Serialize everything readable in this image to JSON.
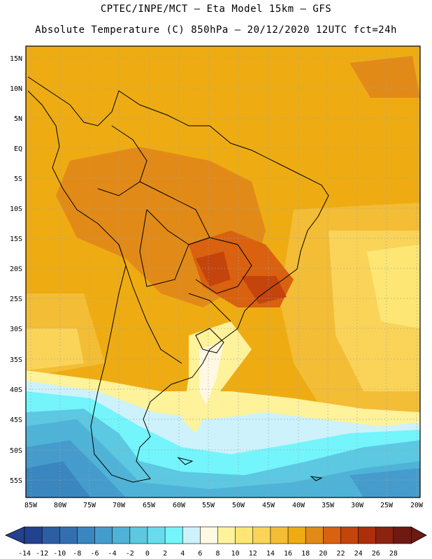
{
  "header": {
    "line1": "CPTEC/INPE/MCT –  Eta Model 15km – GFS",
    "line2": "Absolute Temperature (C) 850hPa – 20/12/2020 12UTC fct=24h"
  },
  "axes": {
    "lat_labels": [
      "15N",
      "10N",
      "5N",
      "EQ",
      "5S",
      "10S",
      "15S",
      "20S",
      "25S",
      "30S",
      "35S",
      "40S",
      "45S",
      "50S",
      "55S"
    ],
    "lat_values": [
      15,
      10,
      5,
      0,
      -5,
      -10,
      -15,
      -20,
      -25,
      -30,
      -35,
      -40,
      -45,
      -50,
      -55
    ],
    "lon_labels": [
      "85W",
      "80W",
      "75W",
      "70W",
      "65W",
      "60W",
      "55W",
      "50W",
      "45W",
      "40W",
      "35W",
      "30W",
      "25W",
      "20W"
    ],
    "lon_values": [
      -85,
      -80,
      -75,
      -70,
      -65,
      -60,
      -55,
      -50,
      -45,
      -40,
      -35,
      -30,
      -25,
      -20
    ]
  },
  "colorbar": {
    "labels": [
      "-14",
      "-12",
      "-10",
      "-8",
      "-6",
      "-4",
      "-2",
      "0",
      "2",
      "4",
      "6",
      "8",
      "10",
      "12",
      "14",
      "16",
      "18",
      "20",
      "22",
      "24",
      "26",
      "28"
    ],
    "colors": [
      "#22418f",
      "#2b5ea3",
      "#336fb0",
      "#3a86bf",
      "#459ccc",
      "#4fb3d7",
      "#5cc8e2",
      "#68dcee",
      "#73f5fb",
      "#cdf2fb",
      "#fff8e3",
      "#fef29a",
      "#fde673",
      "#fad458",
      "#f3bd36",
      "#eeac12",
      "#e28a17",
      "#d9610f",
      "#c4440c",
      "#ac2e0a",
      "#8a2410",
      "#6e1a13"
    ]
  }
}
